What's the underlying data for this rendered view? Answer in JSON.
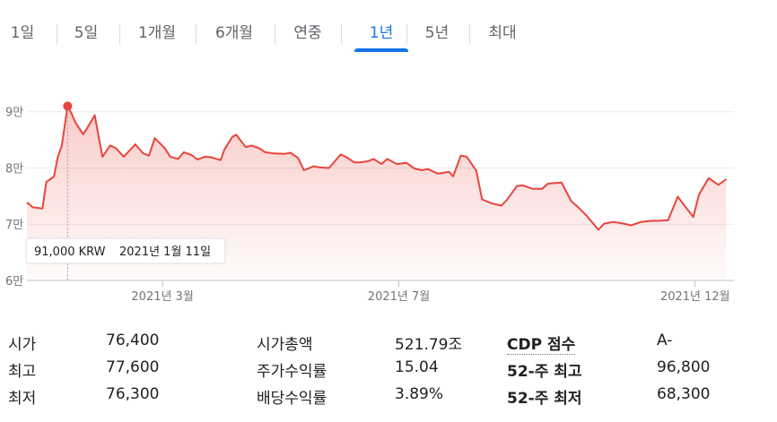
{
  "tabs": [
    {
      "label": "1일"
    },
    {
      "label": "5일"
    },
    {
      "label": "1개월"
    },
    {
      "label": "6개월"
    },
    {
      "label": "연중"
    },
    {
      "label": "1년",
      "active": true
    },
    {
      "label": "5년"
    },
    {
      "label": "최대"
    }
  ],
  "tooltip": {
    "price": "91,000 KRW",
    "date": "2021년 1월 11일"
  },
  "colors": {
    "line": "#e8453c",
    "accent": "#1a73e8",
    "grid": "#ebebeb"
  },
  "chart_data": {
    "type": "area",
    "ylim": [
      60000,
      92500
    ],
    "y_ticks": [
      {
        "value": 90000,
        "label": "9만"
      },
      {
        "value": 80000,
        "label": "8만"
      },
      {
        "value": 70000,
        "label": "7만"
      },
      {
        "value": 60000,
        "label": "6만"
      }
    ],
    "x_ticks": [
      {
        "x": "2021-03-01",
        "label": "2021년 3월"
      },
      {
        "x": "2021-07-01",
        "label": "2021년 7월"
      },
      {
        "x": "2021-12-01",
        "label": "2021년 12월"
      }
    ],
    "xlim": [
      "2020-12-21",
      "2021-12-21"
    ],
    "highlight": {
      "x": "2021-01-11",
      "y": 91000
    },
    "series": [
      {
        "values": [
          [
            "2020-12-21",
            73900
          ],
          [
            "2020-12-24",
            73000
          ],
          [
            "2020-12-29",
            72800
          ],
          [
            "2020-12-31",
            77500
          ],
          [
            "2021-01-04",
            78500
          ],
          [
            "2021-01-06",
            82000
          ],
          [
            "2021-01-08",
            84000
          ],
          [
            "2021-01-11",
            91000
          ],
          [
            "2021-01-13",
            89700
          ],
          [
            "2021-01-15",
            88100
          ],
          [
            "2021-01-19",
            86000
          ],
          [
            "2021-01-21",
            87000
          ],
          [
            "2021-01-25",
            89400
          ],
          [
            "2021-01-27",
            85600
          ],
          [
            "2021-01-29",
            82000
          ],
          [
            "2021-02-02",
            84000
          ],
          [
            "2021-02-05",
            83500
          ],
          [
            "2021-02-09",
            82000
          ],
          [
            "2021-02-15",
            84200
          ],
          [
            "2021-02-19",
            82600
          ],
          [
            "2021-02-22",
            82200
          ],
          [
            "2021-02-25",
            85300
          ],
          [
            "2021-03-02",
            83600
          ],
          [
            "2021-03-05",
            82000
          ],
          [
            "2021-03-09",
            81600
          ],
          [
            "2021-03-12",
            82800
          ],
          [
            "2021-03-16",
            82300
          ],
          [
            "2021-03-19",
            81500
          ],
          [
            "2021-03-23",
            82000
          ],
          [
            "2021-03-26",
            81900
          ],
          [
            "2021-03-31",
            81400
          ],
          [
            "2021-04-02",
            83300
          ],
          [
            "2021-04-06",
            85500
          ],
          [
            "2021-04-08",
            85900
          ],
          [
            "2021-04-13",
            83700
          ],
          [
            "2021-04-16",
            84000
          ],
          [
            "2021-04-20",
            83500
          ],
          [
            "2021-04-23",
            82800
          ],
          [
            "2021-04-27",
            82600
          ],
          [
            "2021-05-03",
            82500
          ],
          [
            "2021-05-06",
            82700
          ],
          [
            "2021-05-10",
            81800
          ],
          [
            "2021-05-13",
            79600
          ],
          [
            "2021-05-18",
            80300
          ],
          [
            "2021-05-21",
            80100
          ],
          [
            "2021-05-26",
            80000
          ],
          [
            "2021-06-01",
            82400
          ],
          [
            "2021-06-04",
            81900
          ],
          [
            "2021-06-08",
            81000
          ],
          [
            "2021-06-11",
            81000
          ],
          [
            "2021-06-15",
            81200
          ],
          [
            "2021-06-18",
            81600
          ],
          [
            "2021-06-22",
            80700
          ],
          [
            "2021-06-25",
            81600
          ],
          [
            "2021-06-30",
            80700
          ],
          [
            "2021-07-05",
            80900
          ],
          [
            "2021-07-09",
            79900
          ],
          [
            "2021-07-13",
            79600
          ],
          [
            "2021-07-16",
            79800
          ],
          [
            "2021-07-21",
            79000
          ],
          [
            "2021-07-27",
            79300
          ],
          [
            "2021-07-29",
            78500
          ],
          [
            "2021-08-02",
            82200
          ],
          [
            "2021-08-05",
            82000
          ],
          [
            "2021-08-10",
            79500
          ],
          [
            "2021-08-13",
            74400
          ],
          [
            "2021-08-18",
            73700
          ],
          [
            "2021-08-23",
            73300
          ],
          [
            "2021-08-26",
            74400
          ],
          [
            "2021-08-31",
            76800
          ],
          [
            "2021-09-03",
            76900
          ],
          [
            "2021-09-08",
            76300
          ],
          [
            "2021-09-13",
            76300
          ],
          [
            "2021-09-16",
            77200
          ],
          [
            "2021-09-23",
            77400
          ],
          [
            "2021-09-28",
            74100
          ],
          [
            "2021-10-01",
            73200
          ],
          [
            "2021-10-06",
            71500
          ],
          [
            "2021-10-12",
            69000
          ],
          [
            "2021-10-15",
            70100
          ],
          [
            "2021-10-20",
            70400
          ],
          [
            "2021-10-25",
            70100
          ],
          [
            "2021-10-29",
            69800
          ],
          [
            "2021-11-03",
            70400
          ],
          [
            "2021-11-08",
            70600
          ],
          [
            "2021-11-12",
            70600
          ],
          [
            "2021-11-17",
            70700
          ],
          [
            "2021-11-22",
            74900
          ],
          [
            "2021-11-25",
            73500
          ],
          [
            "2021-11-30",
            71300
          ],
          [
            "2021-12-03",
            75300
          ],
          [
            "2021-12-08",
            78200
          ],
          [
            "2021-12-13",
            77000
          ],
          [
            "2021-12-17",
            78000
          ]
        ]
      }
    ]
  },
  "stats": {
    "col1": [
      {
        "label": "시가",
        "value": "76,400"
      },
      {
        "label": "최고",
        "value": "77,600"
      },
      {
        "label": "최저",
        "value": "76,300"
      }
    ],
    "col2": [
      {
        "label": "시가총액",
        "value": "521.79조"
      },
      {
        "label": "주가수익률",
        "value": "15.04"
      },
      {
        "label": "배당수익률",
        "value": "3.89%"
      }
    ],
    "col3": [
      {
        "label": "CDP 점수",
        "value": "A-"
      },
      {
        "label": "52-주 최고",
        "value": "96,800"
      },
      {
        "label": "52-주 최저",
        "value": "68,300"
      }
    ]
  }
}
